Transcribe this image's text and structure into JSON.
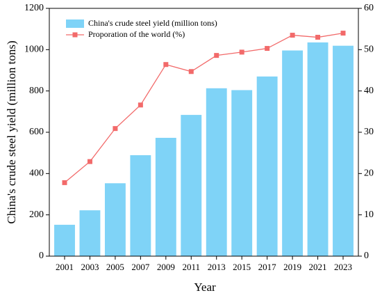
{
  "chart_data": {
    "type": "bar_line",
    "x_label": "Year",
    "y_label": "China's crude steel yield (million tons)",
    "categories": [
      "2001",
      "2003",
      "2005",
      "2007",
      "2009",
      "2011",
      "2013",
      "2015",
      "2017",
      "2019",
      "2021",
      "2023"
    ],
    "series": [
      {
        "name": "China's crude steel yield (million tons)",
        "color": "#7fd3f7",
        "type": "bar",
        "values": [
          152,
          222,
          353,
          489,
          573,
          684,
          813,
          804,
          870,
          996,
          1035,
          1019
        ]
      },
      {
        "name": "Proporation of the world (%)",
        "color": "#f26a6a",
        "type": "line",
        "axis": "y2",
        "values": [
          17.8,
          22.9,
          30.9,
          36.6,
          46.4,
          44.7,
          48.6,
          49.4,
          50.3,
          53.5,
          53.0,
          54.0
        ]
      }
    ],
    "ylim": [
      0,
      1200
    ],
    "yticks": [
      0,
      200,
      400,
      600,
      800,
      1000,
      1200
    ],
    "y2lim": [
      0,
      60
    ],
    "y2ticks": [
      0,
      10,
      20,
      30,
      40,
      50,
      60
    ],
    "legend": "upper left"
  }
}
